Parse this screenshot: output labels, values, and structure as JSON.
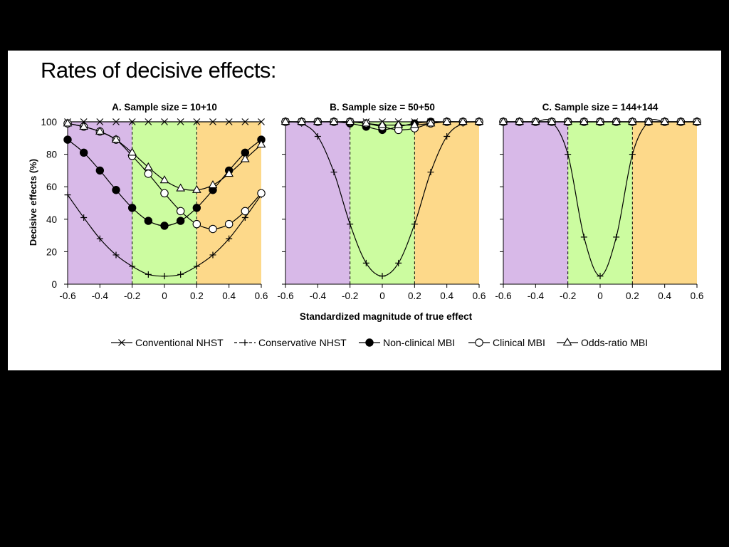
{
  "slide": {
    "title": "Rates of decisive effects:"
  },
  "colors": {
    "region_left": "#d8b9e8",
    "region_mid": "#ccfca0",
    "region_right": "#fdd98a",
    "background": "#000000",
    "slide": "#ffffff"
  },
  "chart_data": {
    "type": "line",
    "ylabel": "Decisive effects (%)",
    "xlabel": "Standardized magnitude of true effect",
    "xlim": [
      -0.6,
      0.6
    ],
    "ylim": [
      0,
      100
    ],
    "x_ticks": [
      "-0.6",
      "-0.4",
      "-0.2",
      "0",
      "0.2",
      "0.4",
      "0.6"
    ],
    "y_ticks": [
      "0",
      "20",
      "40",
      "60",
      "80",
      "100"
    ],
    "thresholds": [
      -0.2,
      0.2
    ],
    "grid": false,
    "legend_position": "bottom",
    "legend": [
      {
        "name": "Conventional NHST",
        "marker": "x"
      },
      {
        "name": "Conservative NHST",
        "marker": "plus"
      },
      {
        "name": "Non-clinical MBI",
        "marker": "filled-circle"
      },
      {
        "name": "Clinical MBI",
        "marker": "open-circle"
      },
      {
        "name": "Odds-ratio MBI",
        "marker": "open-triangle"
      }
    ],
    "panels": [
      {
        "title": "A. Sample size = 10+10",
        "x": [
          -0.6,
          -0.5,
          -0.4,
          -0.3,
          -0.2,
          -0.1,
          0,
          0.1,
          0.2,
          0.3,
          0.4,
          0.5,
          0.6
        ],
        "series": [
          {
            "name": "Conventional NHST",
            "values": [
              100,
              100,
              100,
              100,
              100,
              100,
              100,
              100,
              100,
              100,
              100,
              100,
              100
            ]
          },
          {
            "name": "Conservative NHST",
            "values": [
              55,
              41,
              28,
              18,
              11,
              6,
              5,
              6,
              11,
              18,
              28,
              41,
              55
            ]
          },
          {
            "name": "Non-clinical MBI",
            "values": [
              89,
              81,
              70,
              58,
              47,
              39,
              36,
              39,
              47,
              58,
              70,
              81,
              89
            ]
          },
          {
            "name": "Clinical MBI",
            "values": [
              99,
              97,
              94,
              89,
              79,
              68,
              56,
              45,
              37,
              34,
              37,
              45,
              56
            ]
          },
          {
            "name": "Odds-ratio MBI",
            "values": [
              99,
              97,
              94,
              89,
              81,
              72,
              64,
              59,
              58,
              61,
              68,
              77,
              86
            ]
          }
        ]
      },
      {
        "title": "B. Sample size = 50+50",
        "x": [
          -0.6,
          -0.5,
          -0.4,
          -0.3,
          -0.2,
          -0.1,
          0,
          0.1,
          0.2,
          0.3,
          0.4,
          0.5,
          0.6
        ],
        "series": [
          {
            "name": "Conventional NHST",
            "values": [
              100,
              100,
              100,
              100,
              100,
              100,
              100,
              100,
              100,
              100,
              100,
              100,
              100
            ]
          },
          {
            "name": "Conservative NHST",
            "values": [
              100,
              99,
              91,
              69,
              37,
              13,
              5,
              13,
              37,
              69,
              91,
              99,
              100
            ]
          },
          {
            "name": "Non-clinical MBI",
            "values": [
              100,
              100,
              100,
              100,
              99,
              97,
              95,
              97,
              99,
              100,
              100,
              100,
              100
            ]
          },
          {
            "name": "Clinical MBI",
            "values": [
              100,
              100,
              100,
              100,
              100,
              99,
              97,
              95,
              96,
              99,
              100,
              100,
              100
            ]
          },
          {
            "name": "Odds-ratio MBI",
            "values": [
              100,
              100,
              100,
              100,
              100,
              99,
              98,
              98,
              98,
              99,
              100,
              100,
              100
            ]
          }
        ]
      },
      {
        "title": "C. Sample size = 144+144",
        "x": [
          -0.6,
          -0.5,
          -0.4,
          -0.3,
          -0.2,
          -0.1,
          0,
          0.1,
          0.2,
          0.3,
          0.4,
          0.5,
          0.6
        ],
        "series": [
          {
            "name": "Conventional NHST",
            "values": [
              100,
              100,
              100,
              100,
              100,
              100,
              100,
              100,
              100,
              100,
              100,
              100,
              100
            ]
          },
          {
            "name": "Conservative NHST",
            "values": [
              100,
              100,
              100,
              100,
              80,
              29,
              5,
              29,
              80,
              100,
              100,
              100,
              100
            ]
          },
          {
            "name": "Non-clinical MBI",
            "values": [
              100,
              100,
              100,
              100,
              100,
              100,
              100,
              100,
              100,
              100,
              100,
              100,
              100
            ]
          },
          {
            "name": "Clinical MBI",
            "values": [
              100,
              100,
              100,
              100,
              100,
              100,
              100,
              100,
              100,
              100,
              100,
              100,
              100
            ]
          },
          {
            "name": "Odds-ratio MBI",
            "values": [
              100,
              100,
              100,
              100,
              100,
              100,
              100,
              100,
              100,
              100,
              100,
              100,
              100
            ]
          }
        ]
      }
    ]
  }
}
